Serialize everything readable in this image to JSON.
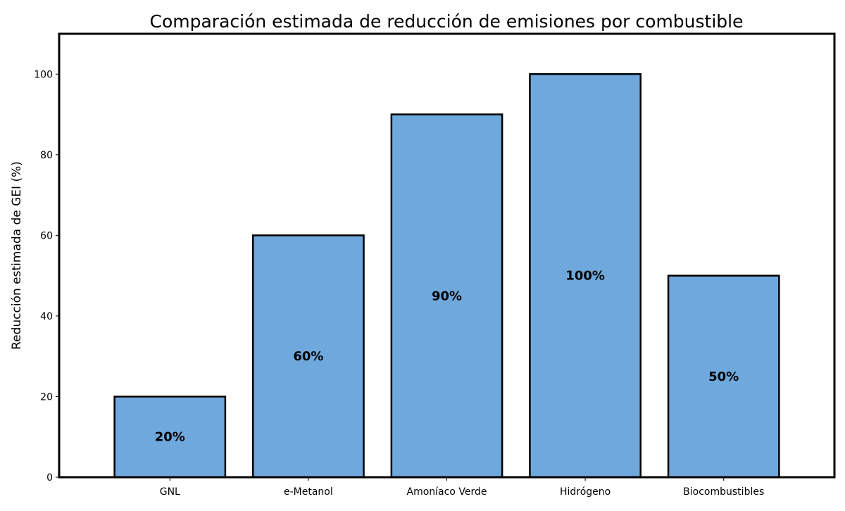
{
  "chart_data": {
    "type": "bar",
    "title": "Comparación estimada de reducción de emisiones por combustible",
    "xlabel": "",
    "ylabel": "Reducción estimada de GEI (%)",
    "categories": [
      "GNL",
      "e-Metanol",
      "Amoníaco Verde",
      "Hidrógeno",
      "Biocombustibles"
    ],
    "values": [
      20,
      60,
      90,
      100,
      50
    ],
    "data_labels": [
      "20%",
      "60%",
      "90%",
      "100%",
      "50%"
    ],
    "ylim": [
      0,
      110
    ],
    "yticks": [
      0,
      20,
      40,
      60,
      80,
      100
    ],
    "grid": false,
    "bar_color": "#6fa8dc",
    "edge_color": "#000000"
  }
}
